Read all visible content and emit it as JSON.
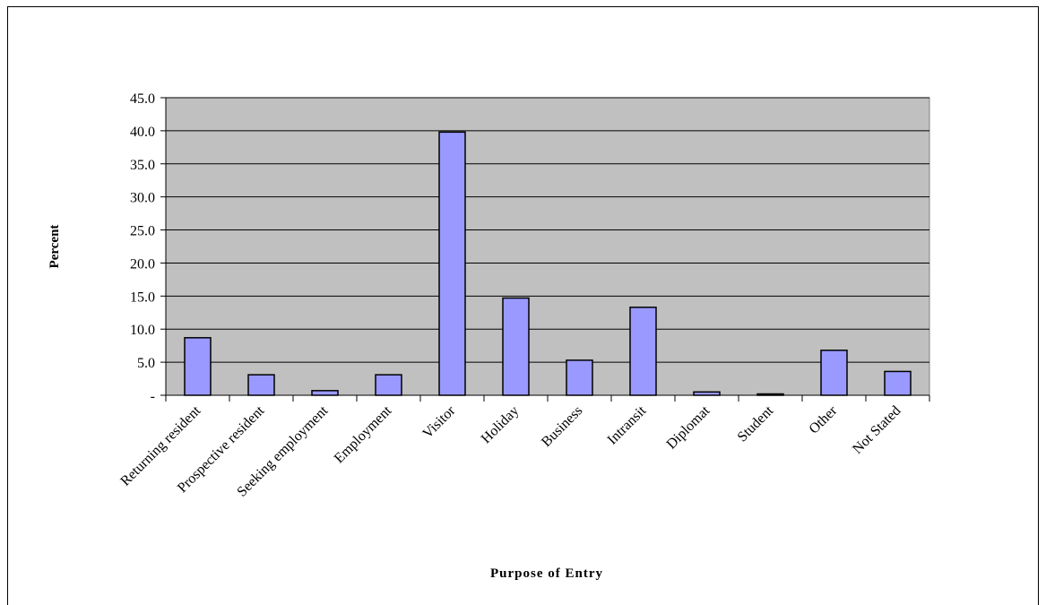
{
  "chart_data": {
    "type": "bar",
    "xlabel": "Purpose of Entry",
    "ylabel": "Percent",
    "ylim": [
      0,
      45
    ],
    "ytick_step": 5,
    "ytick_labels": [
      "-",
      "5.0",
      "10.0",
      "15.0",
      "20.0",
      "25.0",
      "30.0",
      "35.0",
      "40.0",
      "45.0"
    ],
    "categories": [
      "Returning resident",
      "Prospective resident",
      "Seeking employment",
      "Employment",
      "Visitor",
      "Holiday",
      "Business",
      "Intransit",
      "Diplomat",
      "Student",
      "Other",
      "Not Stated"
    ],
    "values": [
      8.7,
      3.1,
      0.7,
      3.1,
      39.8,
      14.7,
      5.3,
      13.3,
      0.5,
      0.2,
      6.8,
      3.6
    ],
    "grid": true,
    "legend": "none",
    "colors": {
      "bar_fill": "#9999ff",
      "bar_stroke": "#000000",
      "plot_background": "#c0c0c0",
      "gridline": "#000000"
    }
  }
}
